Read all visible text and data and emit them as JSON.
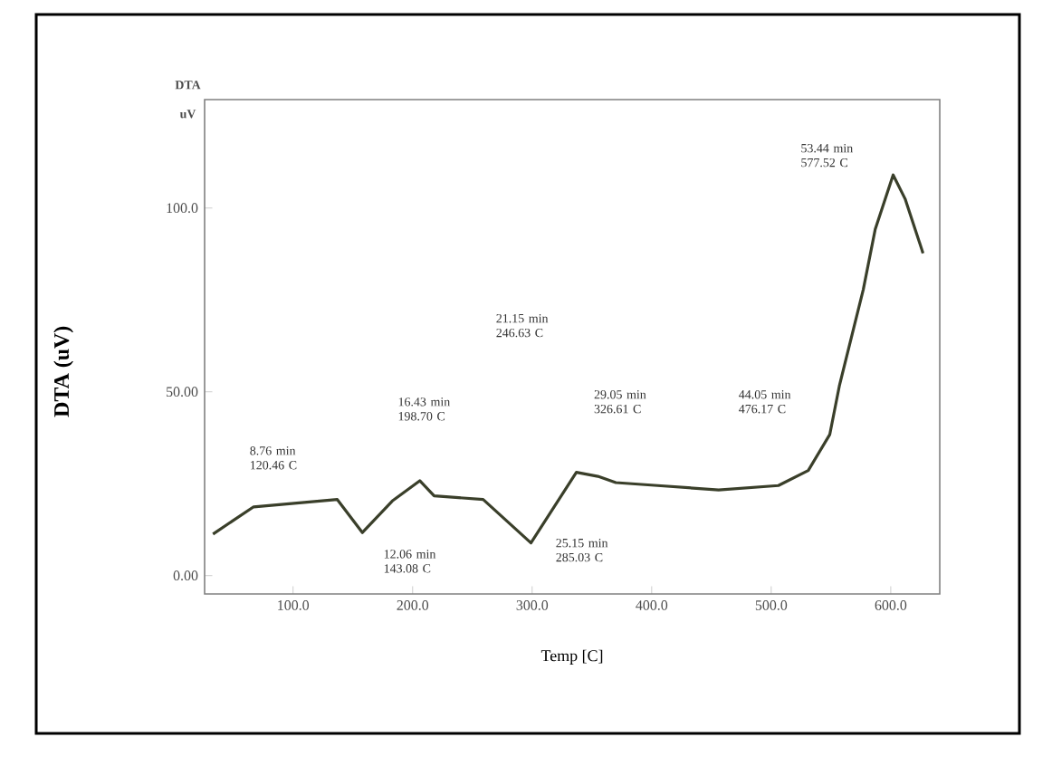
{
  "chart_data": {
    "type": "line",
    "xlabel": "Temp [C]",
    "ylabel": "DTA (uV)",
    "x": [
      33,
      67,
      137,
      158,
      183,
      206,
      218,
      259,
      299,
      337,
      355,
      370,
      405,
      456,
      506,
      531,
      549,
      557,
      577,
      587,
      602,
      612,
      627
    ],
    "values": [
      11.3,
      18.7,
      20.7,
      11.7,
      20.3,
      25.8,
      21.7,
      20.7,
      8.9,
      28.1,
      27,
      25.3,
      24.5,
      23.3,
      24.5,
      28.6,
      38.4,
      51.6,
      77.8,
      94.2,
      109,
      102.5,
      87.7
    ],
    "color": "#3a3f2a",
    "xlim": [
      26,
      641
    ],
    "ylim": [
      -5,
      129.5
    ],
    "xticks": [
      {
        "value": 100,
        "label": "100.0"
      },
      {
        "value": 200,
        "label": "200.0"
      },
      {
        "value": 300,
        "label": "300.0"
      },
      {
        "value": 400,
        "label": "400.0"
      },
      {
        "value": 500,
        "label": "500.0"
      },
      {
        "value": 600,
        "label": "600.0"
      }
    ],
    "yticks": [
      {
        "value": 0,
        "label": "0.00"
      },
      {
        "value": 50,
        "label": "50.00"
      },
      {
        "value": 100,
        "label": "100.0"
      }
    ],
    "annotations": [
      "DTA",
      "uV",
      "8.76 min 120.46 C",
      "12.06 min 143.08 C",
      "16.43 min 198.70 C",
      "21.15 min 246.63 C",
      "25.15 min 285.03 C",
      "29.05 min 326.61 C",
      "44.05 min 476.17 C",
      "53.44 min 577.52 C"
    ],
    "grid": false,
    "marker": "none",
    "line_style": "solid"
  }
}
